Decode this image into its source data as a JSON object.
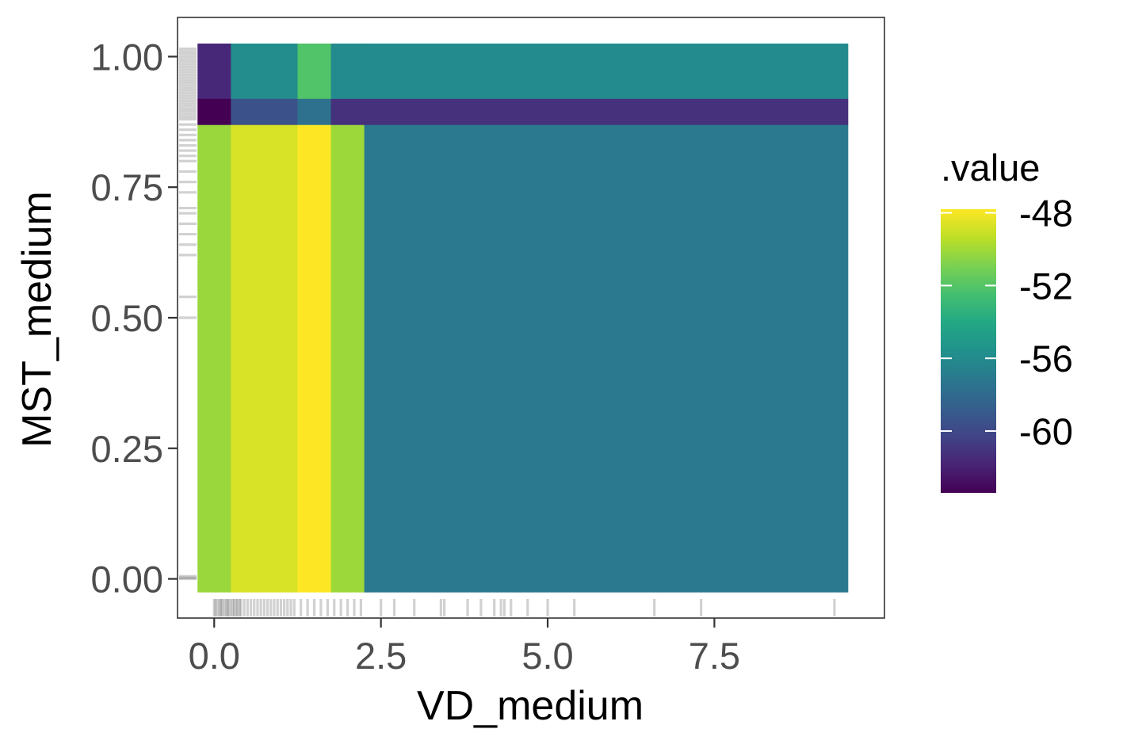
{
  "chart_data": {
    "type": "heatmap",
    "xlabel": "VD_medium",
    "ylabel": "MST_medium",
    "xlim": [
      -0.55,
      10.05
    ],
    "ylim": [
      -0.075,
      1.075
    ],
    "x_ticks": [
      {
        "value": 0.0,
        "label": "0.0"
      },
      {
        "value": 2.5,
        "label": "2.5"
      },
      {
        "value": 5.0,
        "label": "5.0"
      },
      {
        "value": 7.5,
        "label": "7.5"
      }
    ],
    "y_ticks": [
      {
        "value": 0.0,
        "label": "0.00"
      },
      {
        "value": 0.25,
        "label": "0.25"
      },
      {
        "value": 0.5,
        "label": "0.50"
      },
      {
        "value": 0.75,
        "label": "0.75"
      },
      {
        "value": 1.0,
        "label": "1.00"
      }
    ],
    "x_bands": [
      {
        "x0": -0.25,
        "x1": 0.25
      },
      {
        "x0": 0.25,
        "x1": 1.25
      },
      {
        "x0": 1.25,
        "x1": 1.75
      },
      {
        "x0": 1.75,
        "x1": 2.25
      },
      {
        "x0": 2.25,
        "x1": 9.5
      }
    ],
    "y_bands": [
      {
        "y0": -0.025,
        "y1": 0.87
      },
      {
        "y0": 0.87,
        "y1": 0.92
      },
      {
        "y0": 0.92,
        "y1": 0.985
      },
      {
        "y0": 0.985,
        "y1": 1.025
      }
    ],
    "values": [
      [
        -50.2,
        -48.7,
        -47.8,
        -50.1,
        -57.1
      ],
      [
        -63.4,
        -59.5,
        -57.6,
        -61.2,
        -61.2
      ],
      [
        -61.7,
        -55.9,
        -52.1,
        -56.0,
        -56.0
      ],
      [
        -61.7,
        -55.9,
        -52.1,
        -56.0,
        -56.0
      ]
    ],
    "legend": {
      "title": ".value",
      "position": "right",
      "min": -63.4,
      "max": -47.8,
      "breaks": [
        {
          "value": -48,
          "label": "-48"
        },
        {
          "value": -52,
          "label": "-52"
        },
        {
          "value": -56,
          "label": "-56"
        },
        {
          "value": -60,
          "label": "-60"
        }
      ]
    },
    "rug_x": [
      0.0,
      0.02,
      0.05,
      0.08,
      0.1,
      0.12,
      0.15,
      0.18,
      0.2,
      0.22,
      0.25,
      0.28,
      0.3,
      0.33,
      0.35,
      0.38,
      0.4,
      0.45,
      0.5,
      0.55,
      0.6,
      0.65,
      0.7,
      0.75,
      0.8,
      0.85,
      0.9,
      0.95,
      1.0,
      1.05,
      1.1,
      1.15,
      1.2,
      1.3,
      1.4,
      1.5,
      1.6,
      1.7,
      1.8,
      1.9,
      2.0,
      2.1,
      2.2,
      2.5,
      2.7,
      3.0,
      3.4,
      3.45,
      3.8,
      4.0,
      4.2,
      4.3,
      4.35,
      4.45,
      4.7,
      5.0,
      5.4,
      6.6,
      7.3,
      9.3
    ],
    "rug_y": [
      0.0,
      0.002,
      0.005,
      1.0,
      0.995,
      0.99,
      0.985,
      0.98,
      0.975,
      0.97,
      0.965,
      0.96,
      0.955,
      0.95,
      0.945,
      0.94,
      0.935,
      0.93,
      0.925,
      0.92,
      0.915,
      0.91,
      0.905,
      0.9,
      0.895,
      0.89,
      0.885,
      0.88,
      0.87,
      0.86,
      0.85,
      0.84,
      0.83,
      0.82,
      0.81,
      0.8,
      0.78,
      0.76,
      0.74,
      0.71,
      0.7,
      0.68,
      0.66,
      0.64,
      0.62,
      0.54,
      0.5,
      1.005,
      1.01,
      1.015
    ],
    "grid": false,
    "colormap": "viridis",
    "colors": {
      "panel_border": "#333333",
      "tick_color": "#333333",
      "rug_color": "#000000"
    }
  }
}
